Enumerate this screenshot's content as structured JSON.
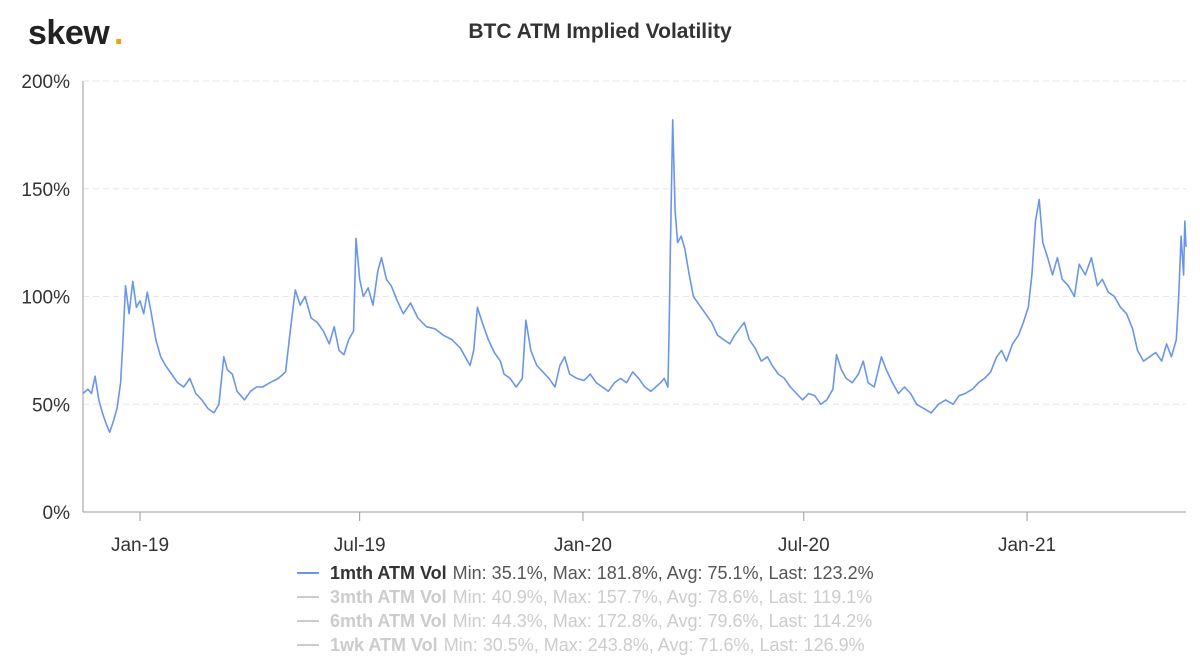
{
  "brand": {
    "name": "skew",
    "dot": ".",
    "dot_color": "#e8a317"
  },
  "chart_data": {
    "type": "line",
    "title": "BTC ATM Implied Volatility",
    "xlabel": "",
    "ylabel": "",
    "ylim": [
      0,
      200
    ],
    "y_ticks": [
      "0%",
      "50%",
      "100%",
      "150%",
      "200%"
    ],
    "y_tick_values": [
      0,
      50,
      100,
      150,
      200
    ],
    "x_range": [
      "2018-11-15",
      "2021-05-12"
    ],
    "x_ticks": [
      {
        "label": "Jan-19",
        "date": "2019-01-01"
      },
      {
        "label": "Jul-19",
        "date": "2019-07-01"
      },
      {
        "label": "Jan-20",
        "date": "2020-01-01"
      },
      {
        "label": "Jul-20",
        "date": "2020-07-01"
      },
      {
        "label": "Jan-21",
        "date": "2021-01-01"
      }
    ],
    "grid": true,
    "legend_position": "bottom",
    "series": [
      {
        "name": "1mth ATM Vol",
        "stats": "Min: 35.1%, Max: 181.8%, Avg: 75.1%, Last: 123.2%",
        "color": "#6b96e8",
        "visible": true,
        "points": [
          [
            "2018-11-15",
            55
          ],
          [
            "2018-11-19",
            57
          ],
          [
            "2018-11-22",
            55
          ],
          [
            "2018-11-25",
            63
          ],
          [
            "2018-11-28",
            52
          ],
          [
            "2018-12-01",
            46
          ],
          [
            "2018-12-04",
            41
          ],
          [
            "2018-12-07",
            37
          ],
          [
            "2018-12-10",
            42
          ],
          [
            "2018-12-13",
            48
          ],
          [
            "2018-12-16",
            60
          ],
          [
            "2018-12-18",
            80
          ],
          [
            "2018-12-20",
            105
          ],
          [
            "2018-12-23",
            92
          ],
          [
            "2018-12-26",
            107
          ],
          [
            "2018-12-29",
            95
          ],
          [
            "2019-01-01",
            98
          ],
          [
            "2019-01-04",
            92
          ],
          [
            "2019-01-07",
            102
          ],
          [
            "2019-01-10",
            93
          ],
          [
            "2019-01-14",
            80
          ],
          [
            "2019-01-18",
            72
          ],
          [
            "2019-01-22",
            68
          ],
          [
            "2019-01-27",
            64
          ],
          [
            "2019-02-01",
            60
          ],
          [
            "2019-02-06",
            58
          ],
          [
            "2019-02-11",
            62
          ],
          [
            "2019-02-16",
            55
          ],
          [
            "2019-02-21",
            52
          ],
          [
            "2019-02-26",
            48
          ],
          [
            "2019-03-03",
            46
          ],
          [
            "2019-03-07",
            50
          ],
          [
            "2019-03-11",
            72
          ],
          [
            "2019-03-14",
            66
          ],
          [
            "2019-03-18",
            64
          ],
          [
            "2019-03-22",
            56
          ],
          [
            "2019-03-28",
            52
          ],
          [
            "2019-04-02",
            56
          ],
          [
            "2019-04-07",
            58
          ],
          [
            "2019-04-12",
            58
          ],
          [
            "2019-04-18",
            60
          ],
          [
            "2019-04-25",
            62
          ],
          [
            "2019-05-01",
            65
          ],
          [
            "2019-05-05",
            85
          ],
          [
            "2019-05-09",
            103
          ],
          [
            "2019-05-13",
            96
          ],
          [
            "2019-05-17",
            100
          ],
          [
            "2019-05-22",
            90
          ],
          [
            "2019-05-27",
            88
          ],
          [
            "2019-06-01",
            84
          ],
          [
            "2019-06-06",
            78
          ],
          [
            "2019-06-10",
            86
          ],
          [
            "2019-06-14",
            75
          ],
          [
            "2019-06-18",
            73
          ],
          [
            "2019-06-22",
            80
          ],
          [
            "2019-06-26",
            84
          ],
          [
            "2019-06-28",
            127
          ],
          [
            "2019-07-01",
            108
          ],
          [
            "2019-07-04",
            100
          ],
          [
            "2019-07-08",
            104
          ],
          [
            "2019-07-12",
            96
          ],
          [
            "2019-07-16",
            112
          ],
          [
            "2019-07-19",
            118
          ],
          [
            "2019-07-23",
            108
          ],
          [
            "2019-07-27",
            105
          ],
          [
            "2019-08-01",
            98
          ],
          [
            "2019-08-06",
            92
          ],
          [
            "2019-08-12",
            97
          ],
          [
            "2019-08-18",
            90
          ],
          [
            "2019-08-25",
            86
          ],
          [
            "2019-09-01",
            85
          ],
          [
            "2019-09-08",
            82
          ],
          [
            "2019-09-15",
            80
          ],
          [
            "2019-09-22",
            76
          ],
          [
            "2019-09-26",
            72
          ],
          [
            "2019-09-30",
            68
          ],
          [
            "2019-10-03",
            75
          ],
          [
            "2019-10-06",
            95
          ],
          [
            "2019-10-10",
            88
          ],
          [
            "2019-10-15",
            80
          ],
          [
            "2019-10-20",
            74
          ],
          [
            "2019-10-25",
            70
          ],
          [
            "2019-10-28",
            64
          ],
          [
            "2019-11-02",
            62
          ],
          [
            "2019-11-07",
            58
          ],
          [
            "2019-11-12",
            62
          ],
          [
            "2019-11-15",
            89
          ],
          [
            "2019-11-19",
            75
          ],
          [
            "2019-11-24",
            68
          ],
          [
            "2019-11-29",
            65
          ],
          [
            "2019-12-04",
            62
          ],
          [
            "2019-12-09",
            58
          ],
          [
            "2019-12-13",
            68
          ],
          [
            "2019-12-17",
            72
          ],
          [
            "2019-12-21",
            64
          ],
          [
            "2019-12-27",
            62
          ],
          [
            "2020-01-02",
            61
          ],
          [
            "2020-01-07",
            64
          ],
          [
            "2020-01-12",
            60
          ],
          [
            "2020-01-17",
            58
          ],
          [
            "2020-01-22",
            56
          ],
          [
            "2020-01-27",
            60
          ],
          [
            "2020-02-01",
            62
          ],
          [
            "2020-02-06",
            60
          ],
          [
            "2020-02-11",
            65
          ],
          [
            "2020-02-16",
            62
          ],
          [
            "2020-02-21",
            58
          ],
          [
            "2020-02-26",
            56
          ],
          [
            "2020-03-01",
            58
          ],
          [
            "2020-03-05",
            60
          ],
          [
            "2020-03-08",
            62
          ],
          [
            "2020-03-11",
            58
          ],
          [
            "2020-03-12",
            84
          ],
          [
            "2020-03-13",
            120
          ],
          [
            "2020-03-15",
            182
          ],
          [
            "2020-03-17",
            140
          ],
          [
            "2020-03-19",
            125
          ],
          [
            "2020-03-22",
            128
          ],
          [
            "2020-03-25",
            122
          ],
          [
            "2020-03-28",
            112
          ],
          [
            "2020-04-01",
            100
          ],
          [
            "2020-04-06",
            96
          ],
          [
            "2020-04-11",
            92
          ],
          [
            "2020-04-16",
            88
          ],
          [
            "2020-04-21",
            82
          ],
          [
            "2020-04-26",
            80
          ],
          [
            "2020-05-01",
            78
          ],
          [
            "2020-05-05",
            82
          ],
          [
            "2020-05-09",
            85
          ],
          [
            "2020-05-13",
            88
          ],
          [
            "2020-05-17",
            80
          ],
          [
            "2020-05-22",
            76
          ],
          [
            "2020-05-27",
            70
          ],
          [
            "2020-06-01",
            72
          ],
          [
            "2020-06-05",
            68
          ],
          [
            "2020-06-10",
            64
          ],
          [
            "2020-06-15",
            62
          ],
          [
            "2020-06-20",
            58
          ],
          [
            "2020-06-25",
            55
          ],
          [
            "2020-06-30",
            52
          ],
          [
            "2020-07-05",
            55
          ],
          [
            "2020-07-10",
            54
          ],
          [
            "2020-07-15",
            50
          ],
          [
            "2020-07-20",
            52
          ],
          [
            "2020-07-25",
            57
          ],
          [
            "2020-07-28",
            73
          ],
          [
            "2020-08-01",
            66
          ],
          [
            "2020-08-05",
            62
          ],
          [
            "2020-08-10",
            60
          ],
          [
            "2020-08-15",
            64
          ],
          [
            "2020-08-19",
            70
          ],
          [
            "2020-08-23",
            60
          ],
          [
            "2020-08-28",
            58
          ],
          [
            "2020-09-03",
            72
          ],
          [
            "2020-09-07",
            66
          ],
          [
            "2020-09-12",
            60
          ],
          [
            "2020-09-17",
            55
          ],
          [
            "2020-09-22",
            58
          ],
          [
            "2020-09-27",
            55
          ],
          [
            "2020-10-02",
            50
          ],
          [
            "2020-10-08",
            48
          ],
          [
            "2020-10-14",
            46
          ],
          [
            "2020-10-20",
            50
          ],
          [
            "2020-10-26",
            52
          ],
          [
            "2020-11-01",
            50
          ],
          [
            "2020-11-06",
            54
          ],
          [
            "2020-11-11",
            55
          ],
          [
            "2020-11-17",
            57
          ],
          [
            "2020-11-22",
            60
          ],
          [
            "2020-11-27",
            62
          ],
          [
            "2020-12-02",
            65
          ],
          [
            "2020-12-07",
            72
          ],
          [
            "2020-12-11",
            75
          ],
          [
            "2020-12-15",
            70
          ],
          [
            "2020-12-20",
            78
          ],
          [
            "2020-12-25",
            82
          ],
          [
            "2020-12-29",
            88
          ],
          [
            "2021-01-02",
            95
          ],
          [
            "2021-01-05",
            110
          ],
          [
            "2021-01-08",
            135
          ],
          [
            "2021-01-11",
            145
          ],
          [
            "2021-01-14",
            125
          ],
          [
            "2021-01-18",
            118
          ],
          [
            "2021-01-22",
            110
          ],
          [
            "2021-01-26",
            118
          ],
          [
            "2021-01-30",
            108
          ],
          [
            "2021-02-04",
            105
          ],
          [
            "2021-02-09",
            100
          ],
          [
            "2021-02-13",
            115
          ],
          [
            "2021-02-18",
            110
          ],
          [
            "2021-02-23",
            118
          ],
          [
            "2021-02-28",
            105
          ],
          [
            "2021-03-04",
            108
          ],
          [
            "2021-03-09",
            102
          ],
          [
            "2021-03-14",
            100
          ],
          [
            "2021-03-19",
            95
          ],
          [
            "2021-03-24",
            92
          ],
          [
            "2021-03-29",
            85
          ],
          [
            "2021-04-02",
            75
          ],
          [
            "2021-04-07",
            70
          ],
          [
            "2021-04-12",
            72
          ],
          [
            "2021-04-17",
            74
          ],
          [
            "2021-04-22",
            70
          ],
          [
            "2021-04-26",
            78
          ],
          [
            "2021-04-30",
            72
          ],
          [
            "2021-05-04",
            80
          ],
          [
            "2021-05-06",
            100
          ],
          [
            "2021-05-08",
            128
          ],
          [
            "2021-05-10",
            110
          ],
          [
            "2021-05-11",
            135
          ],
          [
            "2021-05-12",
            123
          ]
        ]
      },
      {
        "name": "3mth ATM Vol",
        "stats": "Min: 40.9%, Max: 157.7%, Avg: 78.6%, Last: 119.1%",
        "color": "#cccccc",
        "visible": false
      },
      {
        "name": "6mth ATM Vol",
        "stats": "Min: 44.3%, Max: 172.8%, Avg: 79.6%, Last: 114.2%",
        "color": "#cccccc",
        "visible": false
      },
      {
        "name": "1wk ATM Vol",
        "stats": "Min: 30.5%, Max: 243.8%, Avg: 71.6%, Last: 126.9%",
        "color": "#cccccc",
        "visible": false
      }
    ]
  }
}
